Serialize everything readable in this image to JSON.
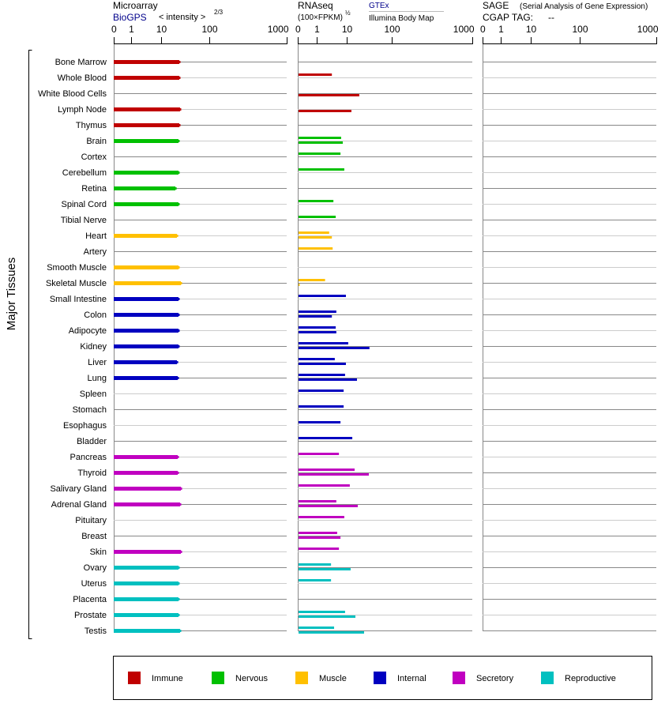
{
  "chart_data": {
    "type": "bar",
    "orientation": "horizontal",
    "y_axis_label": "Major Tissues",
    "panels": [
      {
        "name": "Microarray",
        "source": "BioGPS",
        "unit": "< intensity >",
        "unit_exp": "2/3",
        "ticks": [
          0,
          1,
          10,
          100,
          1000
        ],
        "tick_labels": [
          "0",
          "1",
          "10",
          "100",
          "1000"
        ],
        "xlim": [
          0,
          1000
        ]
      },
      {
        "name": "RNAseq",
        "unit": "(100×FPKM)",
        "unit_exp": "½",
        "source_1": "GTEx",
        "source_2": "Illumina Body Map",
        "ticks": [
          0,
          1,
          10,
          100,
          1000
        ],
        "tick_labels": [
          "0",
          "1",
          "10",
          "100",
          "1000"
        ],
        "xlim": [
          0,
          1000
        ]
      },
      {
        "name": "SAGE",
        "subtitle": "(Serial Analysis of Gene Expression)",
        "tag_label": "CGAP TAG:",
        "tag_value": "--",
        "ticks": [
          0,
          1,
          10,
          100,
          1000
        ],
        "tick_labels": [
          "0",
          "1",
          "10",
          "100",
          "1000"
        ],
        "xlim": [
          0,
          1000
        ]
      }
    ],
    "groups": {
      "Immune": "#c00000",
      "Nervous": "#00c000",
      "Muscle": "#ffc000",
      "Internal": "#0000c0",
      "Secretory": "#c000c0",
      "Reproductive": "#00c0c0"
    },
    "legend": [
      "Immune",
      "Nervous",
      "Muscle",
      "Internal",
      "Secretory",
      "Reproductive"
    ],
    "legend_placement": "bottom",
    "rows": [
      {
        "tissue": "Bone Marrow",
        "group": "Immune",
        "microarray": 23.8,
        "rnaseq": [
          null,
          null
        ]
      },
      {
        "tissue": "Whole Blood",
        "group": "Immune",
        "microarray": 23.8,
        "rnaseq": [
          3.2,
          null
        ]
      },
      {
        "tissue": "White Blood Cells",
        "group": "Immune",
        "microarray": null,
        "rnaseq": [
          null,
          19
        ]
      },
      {
        "tissue": "Lymph Node",
        "group": "Immune",
        "microarray": 24.7,
        "rnaseq": [
          null,
          12.7
        ]
      },
      {
        "tissue": "Thymus",
        "group": "Immune",
        "microarray": 23.8,
        "rnaseq": [
          null,
          null
        ]
      },
      {
        "tissue": "Brain",
        "group": "Nervous",
        "microarray": 22.9,
        "rnaseq": [
          6.5,
          7.4
        ]
      },
      {
        "tissue": "Cortex",
        "group": "Nervous",
        "microarray": null,
        "rnaseq": [
          6.2,
          null
        ]
      },
      {
        "tissue": "Cerebellum",
        "group": "Nervous",
        "microarray": 22.9,
        "rnaseq": [
          8.3,
          null
        ]
      },
      {
        "tissue": "Retina",
        "group": "Nervous",
        "microarray": 19.8,
        "rnaseq": [
          null,
          null
        ]
      },
      {
        "tissue": "Spinal Cord",
        "group": "Nervous",
        "microarray": 22.9,
        "rnaseq": [
          3.6,
          null
        ]
      },
      {
        "tissue": "Tibial Nerve",
        "group": "Nervous",
        "microarray": null,
        "rnaseq": [
          4.3,
          null
        ]
      },
      {
        "tissue": "Heart",
        "group": "Muscle",
        "microarray": 21.3,
        "rnaseq": [
          2.6,
          3.2
        ]
      },
      {
        "tissue": "Artery",
        "group": "Muscle",
        "microarray": null,
        "rnaseq": [
          3.4,
          null
        ]
      },
      {
        "tissue": "Smooth Muscle",
        "group": "Muscle",
        "microarray": 22.9,
        "rnaseq": [
          null,
          null
        ]
      },
      {
        "tissue": "Skeletal Muscle",
        "group": "Muscle",
        "microarray": 25.7,
        "rnaseq": [
          1.9,
          0.1
        ]
      },
      {
        "tissue": "Small Intestine",
        "group": "Internal",
        "microarray": 22.9,
        "rnaseq": [
          9.4,
          null
        ]
      },
      {
        "tissue": "Colon",
        "group": "Internal",
        "microarray": 22.9,
        "rnaseq": [
          4.5,
          3.2
        ]
      },
      {
        "tissue": "Adipocyte",
        "group": "Internal",
        "microarray": 22.9,
        "rnaseq": [
          4.3,
          4.5
        ]
      },
      {
        "tissue": "Kidney",
        "group": "Internal",
        "microarray": 22.9,
        "rnaseq": [
          10.8,
          32
        ]
      },
      {
        "tissue": "Liver",
        "group": "Internal",
        "microarray": 21.3,
        "rnaseq": [
          4.0,
          9.4
        ]
      },
      {
        "tissue": "Lung",
        "group": "Internal",
        "microarray": 22.1,
        "rnaseq": [
          8.8,
          16.9
        ]
      },
      {
        "tissue": "Spleen",
        "group": "Internal",
        "microarray": null,
        "rnaseq": [
          7.9,
          null
        ]
      },
      {
        "tissue": "Stomach",
        "group": "Internal",
        "microarray": null,
        "rnaseq": [
          7.9,
          null
        ]
      },
      {
        "tissue": "Esophagus",
        "group": "Internal",
        "microarray": null,
        "rnaseq": [
          6.2,
          null
        ]
      },
      {
        "tissue": "Bladder",
        "group": "Internal",
        "microarray": null,
        "rnaseq": [
          13.3,
          null
        ]
      },
      {
        "tissue": "Pancreas",
        "group": "Secretory",
        "microarray": 22.1,
        "rnaseq": [
          5.5,
          null
        ]
      },
      {
        "tissue": "Thyroid",
        "group": "Secretory",
        "microarray": 22.1,
        "rnaseq": [
          15,
          31
        ]
      },
      {
        "tissue": "Salivary Gland",
        "group": "Secretory",
        "microarray": 25.7,
        "rnaseq": [
          11.7,
          null
        ]
      },
      {
        "tissue": "Adrenal Gland",
        "group": "Secretory",
        "microarray": 24.7,
        "rnaseq": [
          4.5,
          17.6
        ]
      },
      {
        "tissue": "Pituitary",
        "group": "Secretory",
        "microarray": null,
        "rnaseq": [
          8.3,
          null
        ]
      },
      {
        "tissue": "Breast",
        "group": "Secretory",
        "microarray": null,
        "rnaseq": [
          4.8,
          6.2
        ]
      },
      {
        "tissue": "Skin",
        "group": "Secretory",
        "microarray": 25.7,
        "rnaseq": [
          5.5,
          null
        ]
      },
      {
        "tissue": "Ovary",
        "group": "Reproductive",
        "microarray": 22.9,
        "rnaseq": [
          3.0,
          12.2
        ]
      },
      {
        "tissue": "Uterus",
        "group": "Reproductive",
        "microarray": 22.9,
        "rnaseq": [
          3.0,
          null
        ]
      },
      {
        "tissue": "Placenta",
        "group": "Reproductive",
        "microarray": 22.9,
        "rnaseq": [
          null,
          null
        ]
      },
      {
        "tissue": "Prostate",
        "group": "Reproductive",
        "microarray": 22.9,
        "rnaseq": [
          8.8,
          15.6
        ]
      },
      {
        "tissue": "Testis",
        "group": "Reproductive",
        "microarray": 24.7,
        "rnaseq": [
          3.8,
          24.3
        ]
      }
    ]
  }
}
